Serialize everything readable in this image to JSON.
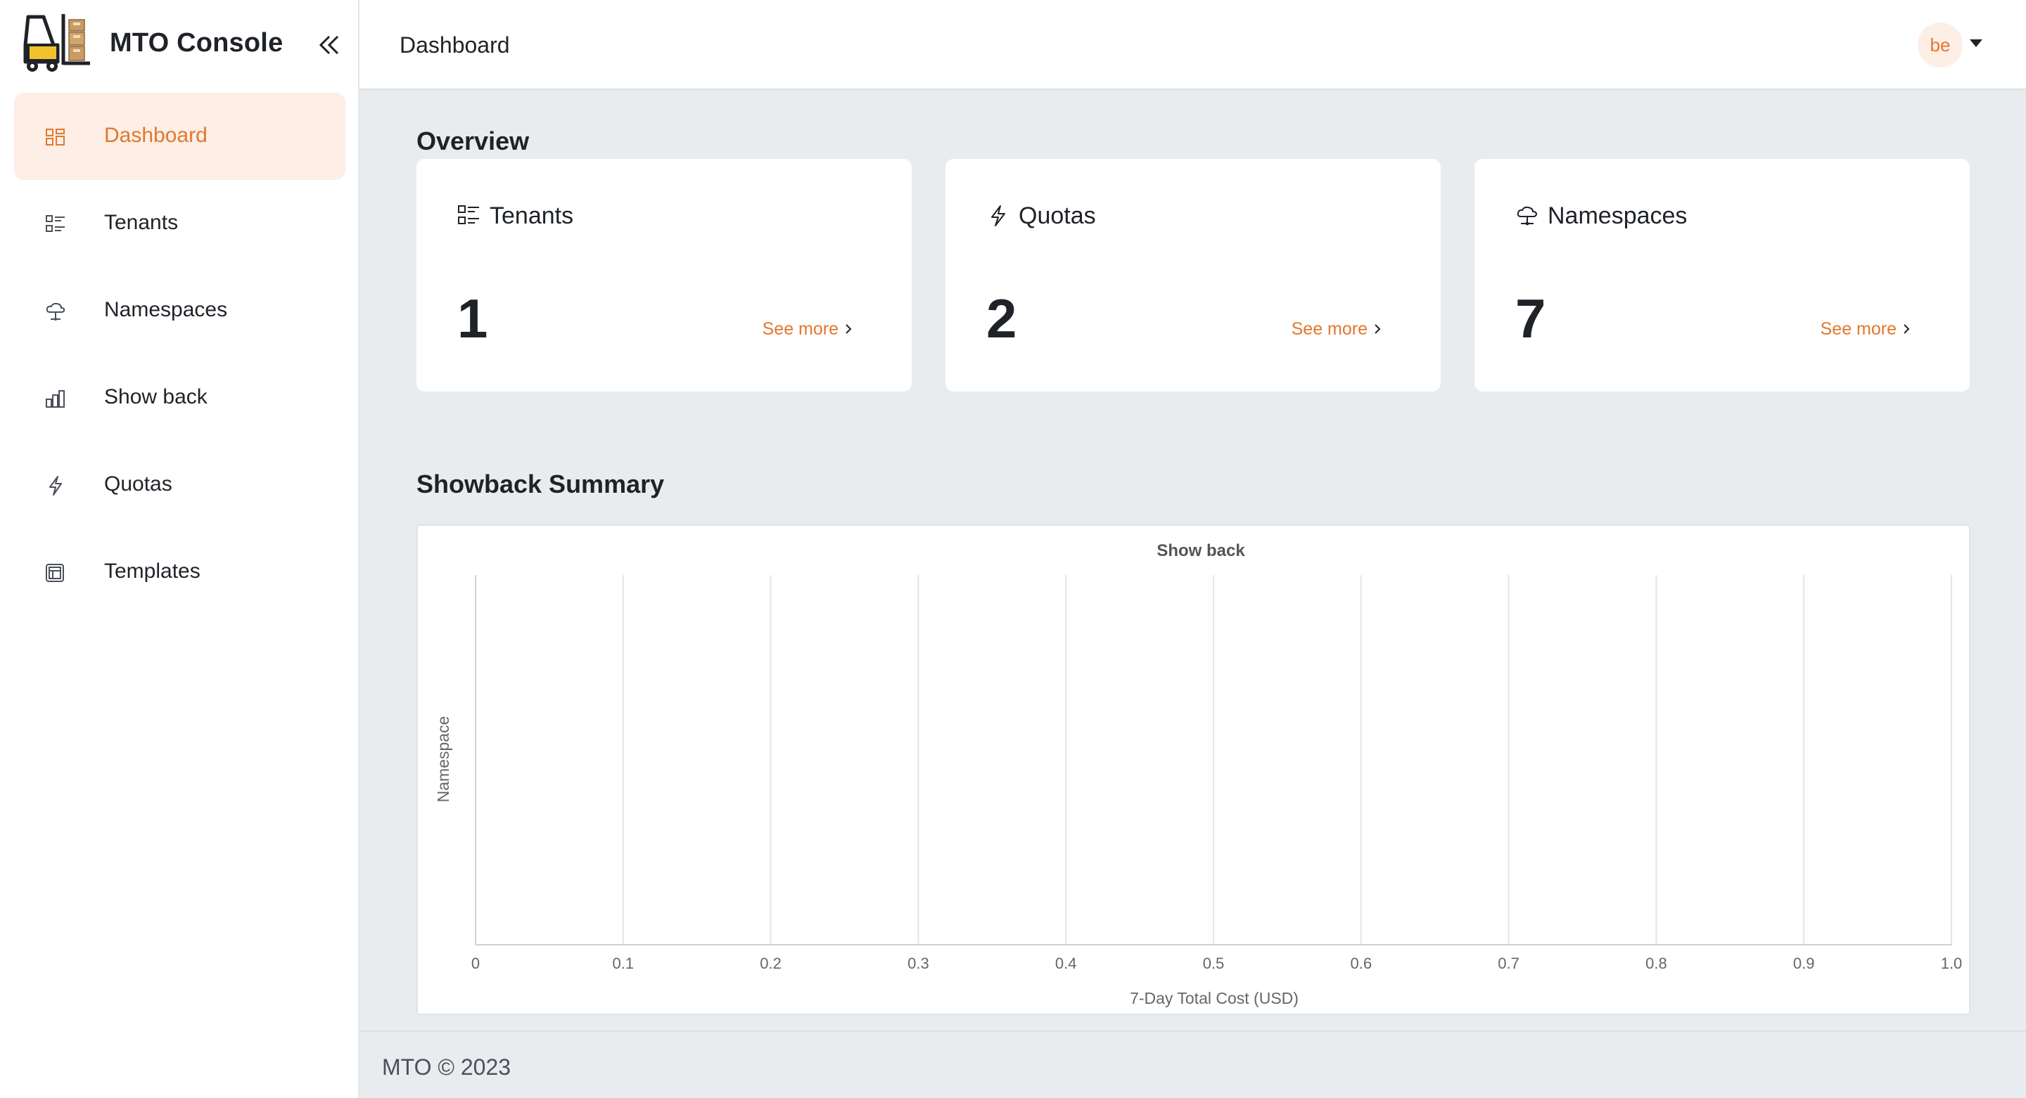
{
  "app": {
    "name": "MTO Console"
  },
  "sidebar": {
    "items": [
      {
        "label": "Dashboard",
        "icon": "dashboard-icon",
        "active": true
      },
      {
        "label": "Tenants",
        "icon": "list-icon",
        "active": false
      },
      {
        "label": "Namespaces",
        "icon": "cloud-icon",
        "active": false
      },
      {
        "label": "Show back",
        "icon": "bar-chart-icon",
        "active": false
      },
      {
        "label": "Quotas",
        "icon": "lightning-icon",
        "active": false
      },
      {
        "label": "Templates",
        "icon": "template-icon",
        "active": false
      }
    ]
  },
  "header": {
    "title": "Dashboard",
    "user_initials": "be"
  },
  "overview": {
    "title": "Overview",
    "cards": [
      {
        "title": "Tenants",
        "value": "1",
        "link": "See more",
        "icon": "list-icon"
      },
      {
        "title": "Quotas",
        "value": "2",
        "link": "See more",
        "icon": "lightning-icon"
      },
      {
        "title": "Namespaces",
        "value": "7",
        "link": "See more",
        "icon": "cloud-icon"
      }
    ]
  },
  "showback": {
    "title": "Showback Summary"
  },
  "chart_data": {
    "type": "bar",
    "orientation": "horizontal",
    "title": "Show back",
    "xlabel": "7-Day Total Cost (USD)",
    "ylabel": "Namespace",
    "categories": [],
    "values": [],
    "xlim": [
      0,
      1.0
    ],
    "x_ticks": [
      "0",
      "0.1",
      "0.2",
      "0.3",
      "0.4",
      "0.5",
      "0.6",
      "0.7",
      "0.8",
      "0.9",
      "1.0"
    ],
    "grid": "vertical"
  },
  "footer": {
    "text": "MTO © 2023"
  },
  "colors": {
    "accent": "#e3782d",
    "accent_bg": "#fdeee6",
    "page_bg": "#e8ecef"
  }
}
